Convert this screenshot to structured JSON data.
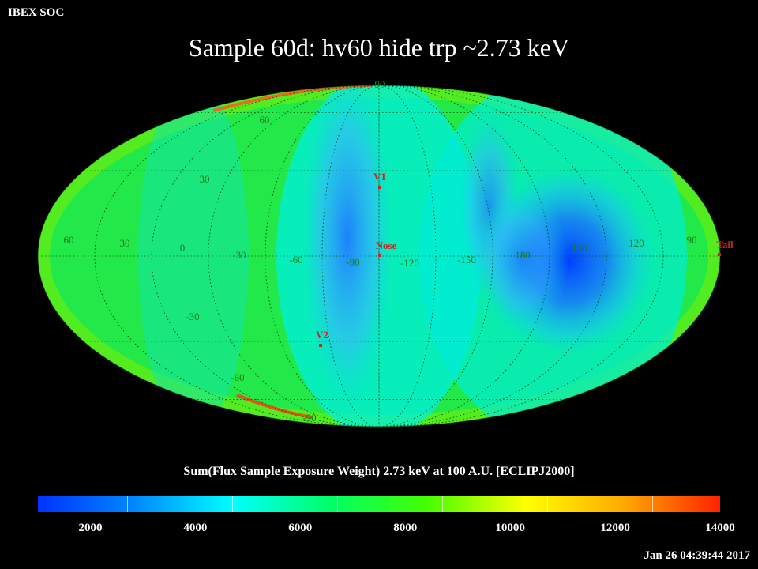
{
  "header": {
    "label": "IBEX SOC"
  },
  "title": "Sample 60d: hv60 hide trp ~2.73 keV",
  "map": {
    "projection": "Mollweide (ecliptic J2000)",
    "longitude_labels": [
      "60",
      "30",
      "0",
      "-30",
      "-60",
      "-90",
      "-120",
      "-150",
      "180",
      "150",
      "120",
      "90"
    ],
    "latitude_labels": [
      "90",
      "60",
      "30",
      "-30",
      "-60",
      "-90"
    ],
    "markers": [
      {
        "name": "V1"
      },
      {
        "name": "Nose"
      },
      {
        "name": "V2"
      },
      {
        "name": "Tail"
      }
    ],
    "marker_color": "#cc2222",
    "grid_label_color": "#1a7a1a"
  },
  "colorbar": {
    "title": "Sum(Flux Sample Exposure Weight)  2.73 keV at 100 A.U. [ECLIPJ2000]",
    "ticks": [
      "2000",
      "4000",
      "6000",
      "8000",
      "10000",
      "12000",
      "14000"
    ],
    "min": 1000,
    "max": 14000,
    "colors": [
      "#0033ff",
      "#0088ff",
      "#00ffff",
      "#00ff66",
      "#44ff00",
      "#ffff00",
      "#ffaa00",
      "#ff2200"
    ]
  },
  "timestamp": "Jan 26 04:39:44 2017"
}
